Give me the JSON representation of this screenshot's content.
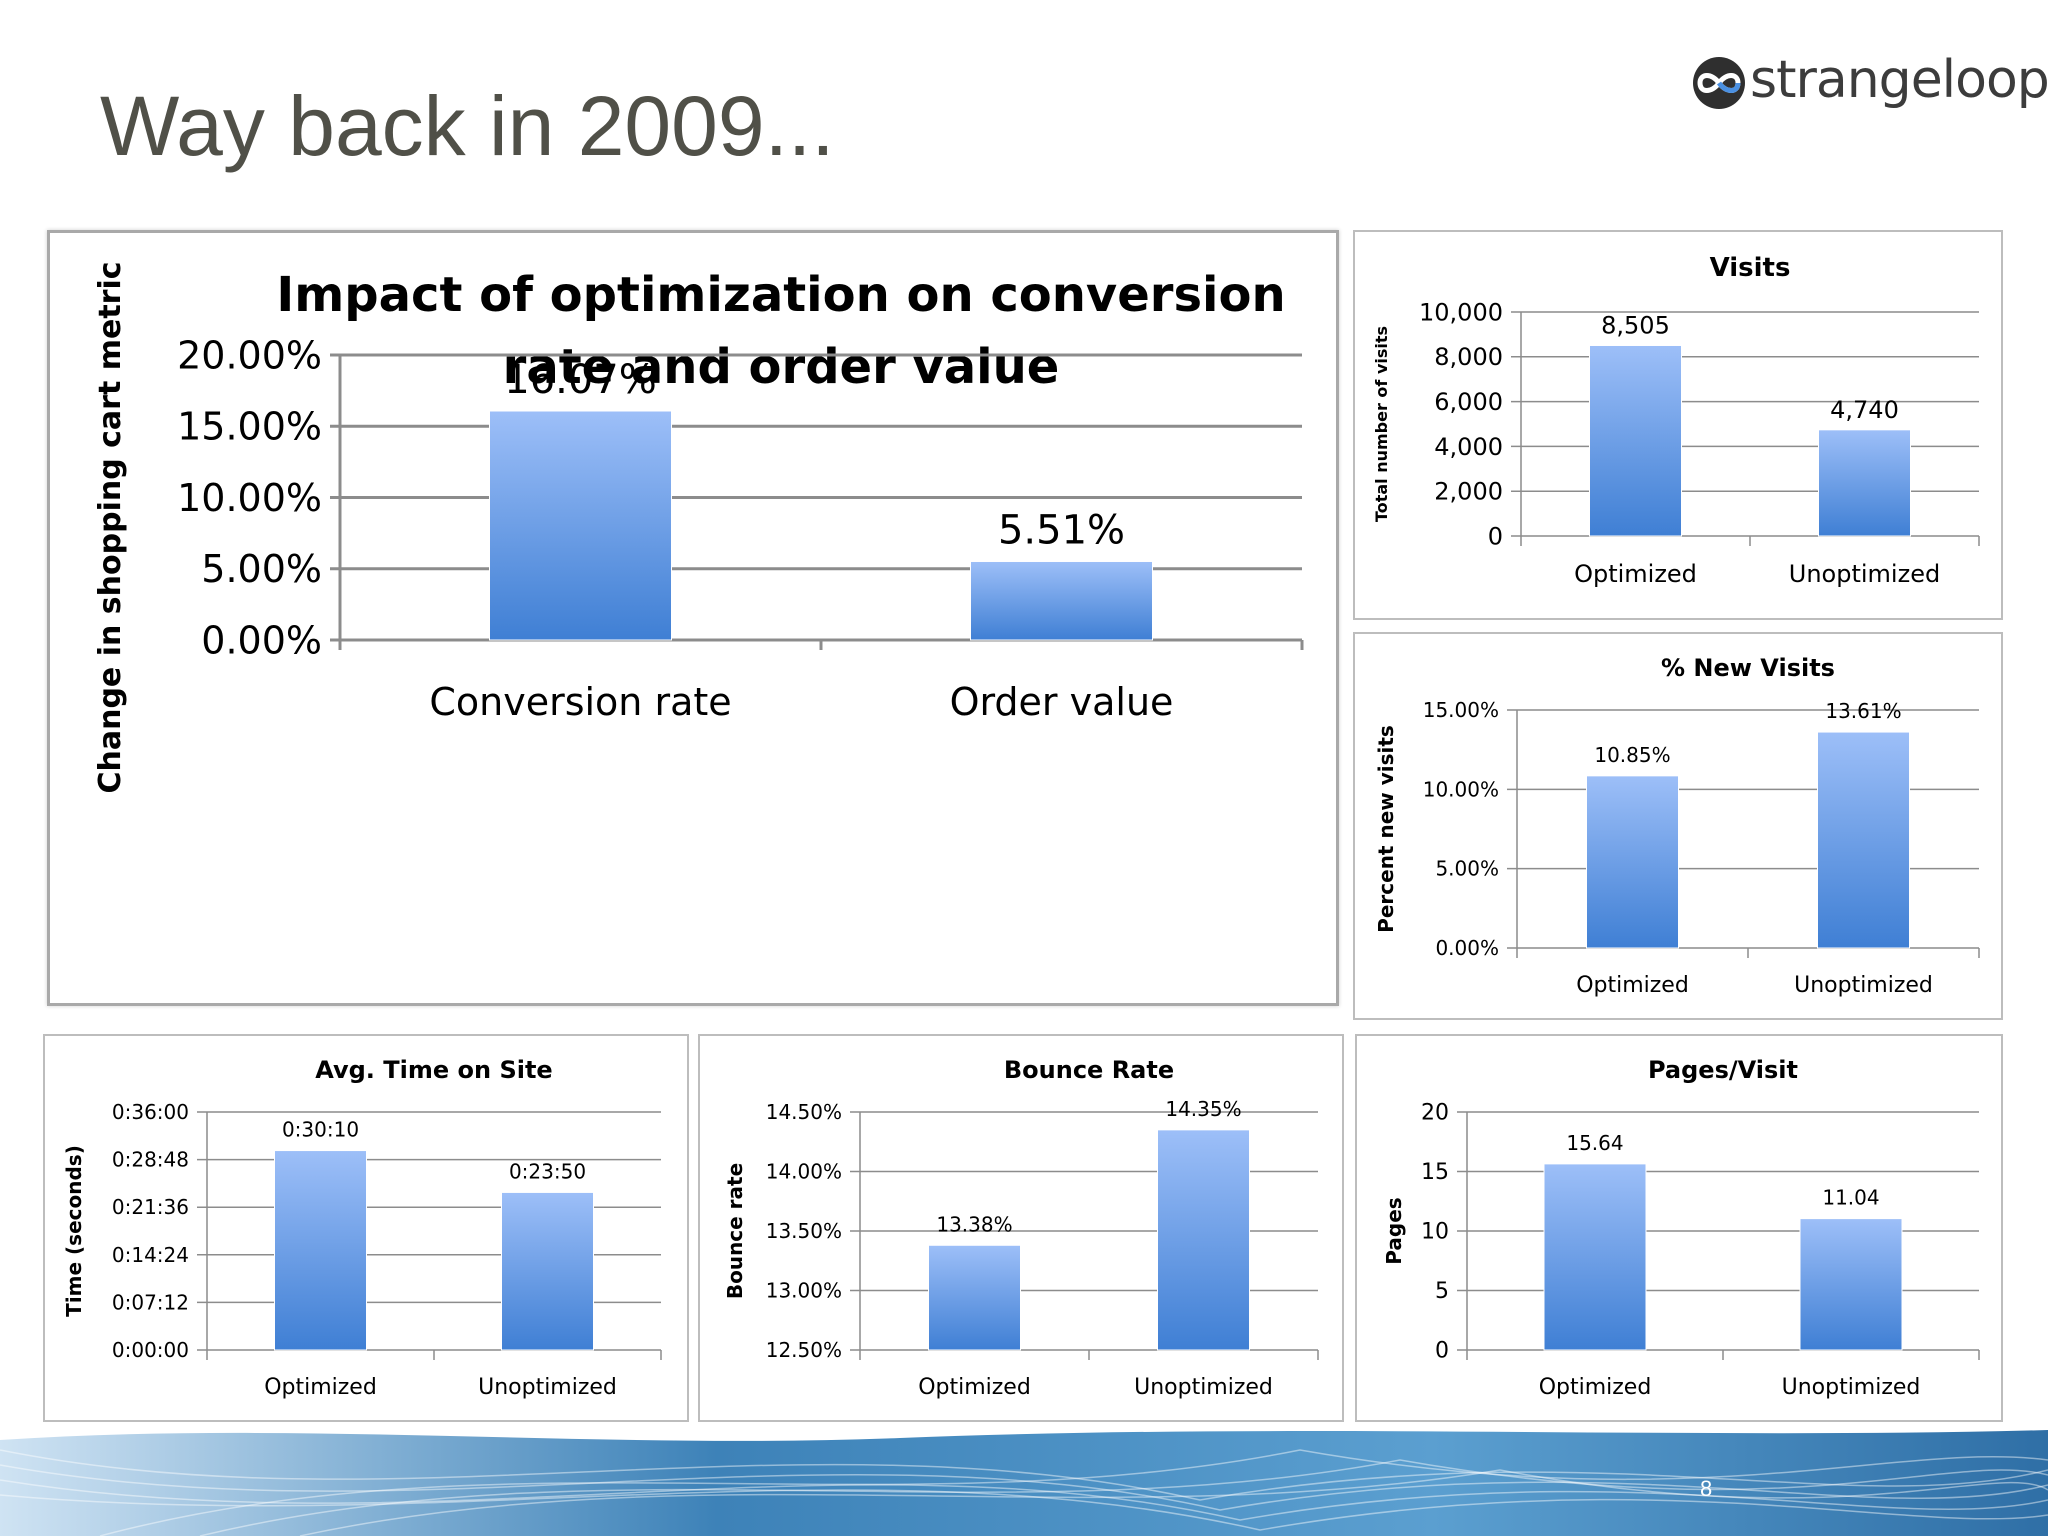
{
  "slide": {
    "title": "Way back in 2009...",
    "logo_text": "strangeloop",
    "page_number": "8"
  },
  "colors": {
    "bar_top": "#9dbff8",
    "bar_bottom": "#3f7fd4",
    "grid": "#8c8c8c",
    "text": "#000000",
    "title_gray": "#505048"
  },
  "chart_data": [
    {
      "id": "main",
      "type": "bar",
      "title": "Impact of optimization on conversion rate and order value",
      "title_lines": [
        "Impact of optimization on conversion",
        "rate and order value"
      ],
      "ylabel": "Change in shopping cart metric",
      "categories": [
        "Conversion rate",
        "Order value"
      ],
      "values": [
        16.07,
        5.51
      ],
      "value_labels": [
        "16.07%",
        "5.51%"
      ],
      "ylim": [
        0,
        20
      ],
      "ticks": [
        0,
        5,
        10,
        15,
        20
      ],
      "tick_labels": [
        "0.00%",
        "5.00%",
        "10.00%",
        "15.00%",
        "20.00%"
      ],
      "grid": true
    },
    {
      "id": "visits",
      "type": "bar",
      "title": "Visits",
      "ylabel": "Total number of visits",
      "categories": [
        "Optimized",
        "Unoptimized"
      ],
      "values": [
        8505,
        4740
      ],
      "value_labels": [
        "8,505",
        "4,740"
      ],
      "ylim": [
        0,
        10000
      ],
      "ticks": [
        0,
        2000,
        4000,
        6000,
        8000,
        10000
      ],
      "tick_labels": [
        "0",
        "2,000",
        "4,000",
        "6,000",
        "8,000",
        "10,000"
      ],
      "grid": true
    },
    {
      "id": "new-visits",
      "type": "bar",
      "title": "% New Visits",
      "ylabel": "Percent new visits",
      "categories": [
        "Optimized",
        "Unoptimized"
      ],
      "values": [
        10.85,
        13.61
      ],
      "value_labels": [
        "10.85%",
        "13.61%"
      ],
      "ylim": [
        0,
        15
      ],
      "ticks": [
        0,
        5,
        10,
        15
      ],
      "tick_labels": [
        "0.00%",
        "5.00%",
        "10.00%",
        "15.00%"
      ],
      "grid": true
    },
    {
      "id": "time-on-site",
      "type": "bar",
      "title": "Avg. Time on Site",
      "ylabel": "Time (seconds)",
      "categories": [
        "Optimized",
        "Unoptimized"
      ],
      "values": [
        1810,
        1430
      ],
      "value_labels": [
        "0:30:10",
        "0:23:50"
      ],
      "ylim": [
        0,
        2160
      ],
      "ticks": [
        0,
        432,
        864,
        1296,
        1728,
        2160
      ],
      "tick_labels": [
        "0:00:00",
        "0:07:12",
        "0:14:24",
        "0:21:36",
        "0:28:48",
        "0:36:00"
      ],
      "grid": true
    },
    {
      "id": "bounce-rate",
      "type": "bar",
      "title": "Bounce Rate",
      "ylabel": "Bounce rate",
      "categories": [
        "Optimized",
        "Unoptimized"
      ],
      "values": [
        13.38,
        14.35
      ],
      "value_labels": [
        "13.38%",
        "14.35%"
      ],
      "ylim": [
        12.5,
        14.5
      ],
      "ticks": [
        12.5,
        13.0,
        13.5,
        14.0,
        14.5
      ],
      "tick_labels": [
        "12.50%",
        "13.00%",
        "13.50%",
        "14.00%",
        "14.50%"
      ],
      "grid": true
    },
    {
      "id": "pages-visit",
      "type": "bar",
      "title": "Pages/Visit",
      "ylabel": "Pages",
      "categories": [
        "Optimized",
        "Unoptimized"
      ],
      "values": [
        15.64,
        11.04
      ],
      "value_labels": [
        "15.64",
        "11.04"
      ],
      "ylim": [
        0,
        20
      ],
      "ticks": [
        0,
        5,
        10,
        15,
        20
      ],
      "tick_labels": [
        "0",
        "5",
        "10",
        "15",
        "20"
      ],
      "grid": true
    }
  ]
}
